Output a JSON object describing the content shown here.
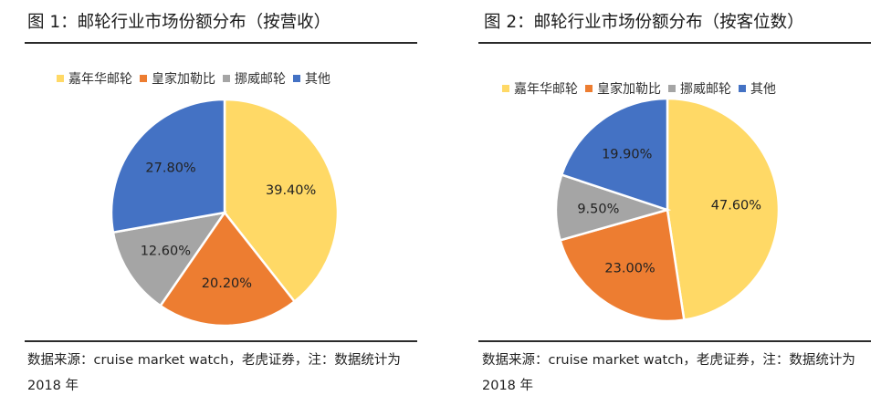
{
  "chart_data": [
    {
      "type": "pie",
      "title": "图 1：邮轮行业市场份额分布（按营收）",
      "categories": [
        "嘉年华邮轮",
        "皇家加勒比",
        "挪威邮轮",
        "其他"
      ],
      "values": [
        39.4,
        20.2,
        12.6,
        27.8
      ],
      "labels": [
        "39.40%",
        "20.20%",
        "12.60%",
        "27.80%"
      ],
      "colors": [
        "#FFD966",
        "#ED7D31",
        "#A5A5A5",
        "#4472C4"
      ],
      "legend": "top",
      "note": "数据来源：cruise market watch，老虎证券，注：数据统计为 2018 年"
    },
    {
      "type": "pie",
      "title": "图 2：邮轮行业市场份额分布（按客位数）",
      "categories": [
        "嘉年华邮轮",
        "皇家加勒比",
        "挪威邮轮",
        "其他"
      ],
      "values": [
        47.6,
        23.0,
        9.5,
        19.9
      ],
      "labels": [
        "47.60%",
        "23.00%",
        "9.50%",
        "19.90%"
      ],
      "colors": [
        "#FFD966",
        "#ED7D31",
        "#A5A5A5",
        "#4472C4"
      ],
      "legend": "top",
      "note": "数据来源：cruise market watch，老虎证券，注：数据统计为 2018 年"
    }
  ]
}
